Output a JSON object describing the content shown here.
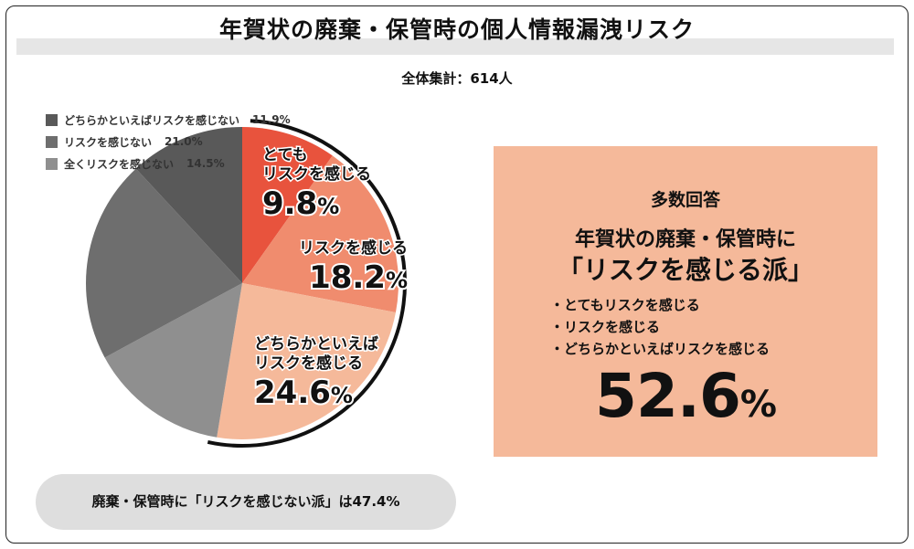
{
  "title": "年賀状の廃棄・保管時の個人情報漏洩リスク",
  "subtitle": "全体集計：614人",
  "legend": [
    {
      "label": "どちらかといえばリスクを感じない",
      "pct": "11.9%",
      "color": "#595959"
    },
    {
      "label": "リスクを感じない",
      "pct": "21.0%",
      "color": "#6e6e6e"
    },
    {
      "label": "全くリスクを感じない",
      "pct": "14.5%",
      "color": "#8f8f8f"
    }
  ],
  "chart_data": {
    "type": "pie",
    "start": "12 o'clock",
    "direction": "clockwise",
    "slices": [
      {
        "label": "とてもリスクを感じる",
        "value": 9.8,
        "color": "#e8533d"
      },
      {
        "label": "リスクを感じる",
        "value": 18.2,
        "color": "#f08c6e"
      },
      {
        "label": "どちらかといえばリスクを感じる",
        "value": 24.6,
        "color": "#f5b99a"
      },
      {
        "label": "全くリスクを感じない",
        "value": 14.5,
        "color": "#8f8f8f"
      },
      {
        "label": "リスクを感じない",
        "value": 21.0,
        "color": "#6e6e6e"
      },
      {
        "label": "どちらかといえばリスクを感じない",
        "value": 11.9,
        "color": "#595959"
      }
    ],
    "in_slice_labels": [
      {
        "line1": "とても",
        "line2": "リスクを感じる",
        "num": "9.8",
        "unit": "%"
      },
      {
        "line1": "",
        "line2": "リスクを感じる",
        "num": "18.2",
        "unit": "%"
      },
      {
        "line1": "どちらかといえば",
        "line2": "リスクを感じる",
        "num": "24.6",
        "unit": "%"
      }
    ]
  },
  "callout": {
    "heading": "多数回答",
    "line1": "年賀状の廃棄・保管時に",
    "line2": "「リスクを感じる派」",
    "bullets": [
      "・とてもリスクを感じる",
      "・リスクを感じる",
      "・どちらかといえばリスクを感じる"
    ],
    "total_num": "52.6",
    "total_unit": "%"
  },
  "footer": "廃棄・保管時に「リスクを感じない派」は47.4%"
}
